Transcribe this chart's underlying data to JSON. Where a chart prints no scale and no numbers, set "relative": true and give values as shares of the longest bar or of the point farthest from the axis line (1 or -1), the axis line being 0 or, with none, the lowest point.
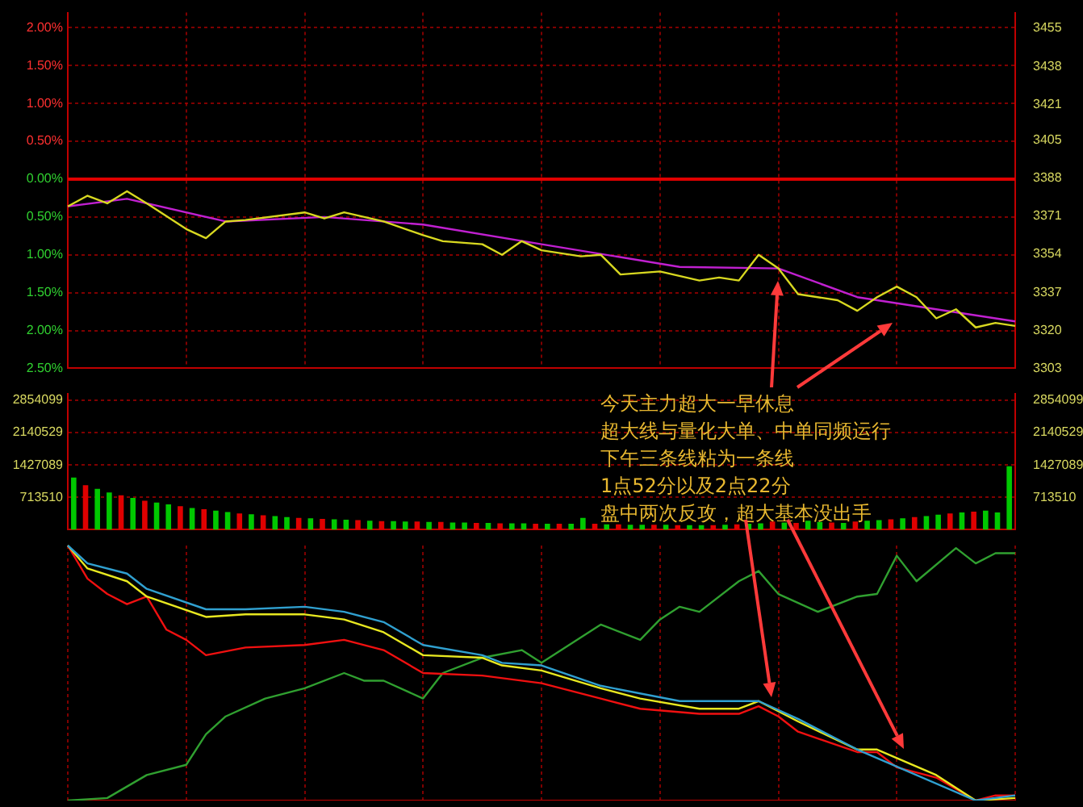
{
  "chart_data": [
    {
      "type": "line",
      "categories": [
        null,
        null,
        null,
        null,
        null,
        null,
        null,
        null,
        null,
        null,
        null,
        null,
        null,
        null,
        null,
        null,
        null,
        null,
        null,
        null,
        null,
        null,
        null,
        null,
        null,
        null,
        null,
        null,
        null,
        null,
        null,
        null,
        null,
        null,
        null,
        null,
        null,
        null,
        null,
        null,
        null,
        null,
        null,
        null,
        null,
        null,
        null,
        null,
        null
      ],
      "ylim": [
        -2.5,
        2.2
      ],
      "yticks": [
        {
          "value": 2,
          "label": "2.00%"
        },
        {
          "value": 1.5,
          "label": "1.50%"
        },
        {
          "value": 1,
          "label": "1.00%"
        },
        {
          "value": 0.5,
          "label": "0.50%"
        },
        {
          "value": 0,
          "label": "0.00%"
        },
        {
          "value": -0.5,
          "label": "0.50%"
        },
        {
          "value": -1,
          "label": "1.00%"
        },
        {
          "value": -1.5,
          "label": "1.50%"
        },
        {
          "value": -2,
          "label": "2.00%"
        },
        {
          "value": -2.5,
          "label": "2.50%"
        }
      ],
      "y2lim": [
        3303,
        3462
      ],
      "y2ticks": [
        3303,
        3320,
        3337,
        3354,
        3371,
        3388,
        3405,
        3421,
        3438,
        3455
      ],
      "grid": true,
      "ref_lines": [
        {
          "axis": "y",
          "value": 0,
          "color": "#e00000"
        }
      ],
      "series": [
        {
          "color": "#d8d820",
          "values": [
            -0.36,
            -0.22,
            -0.32,
            -0.16,
            -0.32,
            null,
            -0.66,
            -0.78,
            -0.56,
            -0.54,
            null,
            null,
            -0.44,
            -0.52,
            -0.44,
            null,
            -0.56,
            null,
            -0.74,
            -0.82,
            null,
            -0.86,
            -1.0,
            -0.82,
            -0.94,
            null,
            -1.02,
            -1.0,
            -1.26,
            null,
            -1.22,
            null,
            -1.34,
            -1.3,
            -1.34,
            -1.0,
            -1.18,
            -1.52,
            null,
            -1.6,
            -1.74,
            -1.56,
            -1.42,
            -1.56,
            -1.84,
            -1.72,
            -1.96,
            -1.9,
            -1.94
          ]
        },
        {
          "color": "#c020d0",
          "values": [
            -0.36,
            null,
            null,
            -0.26,
            null,
            null,
            null,
            null,
            -0.56,
            null,
            null,
            null,
            null,
            -0.5,
            null,
            null,
            null,
            null,
            -0.6,
            null,
            null,
            null,
            null,
            null,
            -0.86,
            null,
            null,
            null,
            null,
            null,
            null,
            -1.16,
            null,
            null,
            null,
            null,
            -1.18,
            null,
            null,
            null,
            -1.56,
            null,
            null,
            null,
            null,
            null,
            null,
            null,
            -1.88
          ]
        }
      ]
    },
    {
      "type": "bar",
      "categories": [
        null,
        null,
        null,
        null,
        null,
        null,
        null,
        null,
        null,
        null,
        null,
        null,
        null,
        null,
        null,
        null,
        null,
        null,
        null,
        null,
        null,
        null,
        null,
        null,
        null,
        null,
        null,
        null,
        null,
        null,
        null,
        null,
        null,
        null,
        null,
        null,
        null,
        null,
        null,
        null,
        null,
        null,
        null,
        null,
        null,
        null,
        null,
        null,
        null,
        null,
        null,
        null,
        null,
        null,
        null,
        null,
        null,
        null,
        null,
        null,
        null,
        null,
        null,
        null,
        null,
        null,
        null,
        null,
        null,
        null,
        null,
        null,
        null,
        null,
        null,
        null,
        null,
        null,
        null,
        null
      ],
      "values": [
        1150000,
        980000,
        900000,
        820000,
        760000,
        700000,
        640000,
        600000,
        560000,
        520000,
        480000,
        450000,
        420000,
        390000,
        360000,
        340000,
        320000,
        300000,
        280000,
        260000,
        250000,
        240000,
        230000,
        220000,
        210000,
        200000,
        190000,
        190000,
        180000,
        180000,
        170000,
        170000,
        160000,
        160000,
        150000,
        150000,
        140000,
        140000,
        140000,
        130000,
        130000,
        130000,
        130000,
        260000,
        130000,
        120000,
        120000,
        110000,
        110000,
        110000,
        110000,
        100000,
        100000,
        100000,
        100000,
        110000,
        120000,
        130000,
        140000,
        180000,
        160000,
        150000,
        200000,
        170000,
        160000,
        150000,
        180000,
        200000,
        210000,
        230000,
        250000,
        280000,
        300000,
        330000,
        360000,
        380000,
        400000,
        420000,
        380000,
        1400000
      ],
      "colors": [
        "#00c800",
        "#e00000",
        "#00c800",
        "#00c800",
        "#e00000",
        "#00c800",
        "#e00000",
        "#00c800",
        "#00c800",
        "#e00000",
        "#00c800",
        "#e00000",
        "#00c800",
        "#00c800",
        "#e00000",
        "#00c800",
        "#e00000",
        "#00c800",
        "#00c800",
        "#e00000",
        "#00c800",
        "#e00000",
        "#00c800",
        "#00c800",
        "#e00000",
        "#00c800",
        "#e00000",
        "#00c800",
        "#00c800",
        "#e00000",
        "#00c800",
        "#e00000",
        "#00c800",
        "#00c800",
        "#e00000",
        "#00c800",
        "#e00000",
        "#00c800",
        "#00c800",
        "#e00000",
        "#00c800",
        "#e00000",
        "#00c800",
        "#00c800",
        "#e00000",
        "#00c800",
        "#e00000",
        "#00c800",
        "#00c800",
        "#e00000",
        "#00c800",
        "#e00000",
        "#00c800",
        "#00c800",
        "#e00000",
        "#00c800",
        "#e00000",
        "#00c800",
        "#00c800",
        "#e00000",
        "#00c800",
        "#e00000",
        "#00c800",
        "#00c800",
        "#e00000",
        "#00c800",
        "#e00000",
        "#00c800",
        "#00c800",
        "#e00000",
        "#00c800",
        "#e00000",
        "#00c800",
        "#00c800",
        "#e00000",
        "#00c800",
        "#e00000",
        "#00c800",
        "#00c800",
        "#00c800"
      ],
      "ylim": [
        0,
        3000000
      ],
      "yticks": [
        713510,
        1427089,
        2140529,
        2854099
      ],
      "y2lim": [
        0,
        3000000
      ],
      "y2ticks": [
        713510,
        1427089,
        2140529,
        2854099
      ],
      "grid": "y",
      "annotations": [
        "今天主力超大一早休息",
        "超大线与量化大单、中单同频运行",
        "下午三条线粘为一条线",
        "1点52分以及2点22分",
        "盘中两次反攻，超大基本没出手"
      ]
    },
    {
      "type": "line",
      "relative": true,
      "categories": [
        null,
        null,
        null,
        null,
        null,
        null,
        null,
        null,
        null,
        null,
        null,
        null,
        null,
        null,
        null,
        null,
        null,
        null,
        null,
        null,
        null,
        null,
        null,
        null,
        null,
        null,
        null,
        null,
        null,
        null,
        null,
        null,
        null,
        null,
        null,
        null,
        null,
        null,
        null,
        null,
        null,
        null,
        null,
        null,
        null,
        null,
        null,
        null,
        null
      ],
      "grid": "x",
      "series": [
        {
          "color": "#30a0d0",
          "values": [
            1,
            0.93,
            null,
            0.89,
            0.83,
            null,
            null,
            0.75,
            null,
            0.75,
            null,
            null,
            0.76,
            null,
            0.74,
            null,
            0.7,
            null,
            0.61,
            null,
            null,
            0.57,
            0.54,
            null,
            0.53,
            null,
            null,
            0.45,
            null,
            null,
            null,
            0.39,
            null,
            null,
            null,
            0.39,
            null,
            0.32,
            null,
            null,
            0.2,
            null,
            null,
            null,
            null,
            null,
            0,
            null,
            0.02
          ]
        },
        {
          "color": "#e8e820",
          "values": [
            1,
            0.91,
            null,
            0.86,
            0.8,
            null,
            null,
            0.72,
            null,
            0.73,
            null,
            null,
            0.73,
            null,
            0.71,
            null,
            0.66,
            null,
            0.57,
            null,
            null,
            0.56,
            0.53,
            null,
            0.51,
            null,
            null,
            0.44,
            null,
            0.4,
            null,
            null,
            0.36,
            null,
            0.36,
            0.39,
            null,
            0.31,
            null,
            null,
            0.2,
            0.2,
            null,
            null,
            0.1,
            null,
            0,
            null,
            0.01
          ]
        },
        {
          "color": "#f01010",
          "values": [
            1,
            0.87,
            0.81,
            0.77,
            0.8,
            0.67,
            0.63,
            0.57,
            null,
            0.6,
            null,
            null,
            0.61,
            null,
            0.63,
            null,
            0.59,
            null,
            0.5,
            null,
            null,
            0.49,
            null,
            null,
            0.46,
            null,
            null,
            0.4,
            null,
            0.36,
            null,
            null,
            0.34,
            null,
            0.34,
            0.37,
            0.33,
            0.27,
            null,
            null,
            0.19,
            0.19,
            0.13,
            null,
            0.09,
            null,
            0,
            0.02,
            0.02
          ]
        },
        {
          "color": "#30a030",
          "values": [
            0,
            null,
            0.01,
            null,
            0.1,
            null,
            0.14,
            0.26,
            0.33,
            null,
            0.4,
            null,
            0.44,
            null,
            0.5,
            0.47,
            0.47,
            null,
            0.4,
            0.5,
            null,
            0.56,
            null,
            0.59,
            0.54,
            null,
            0.64,
            0.69,
            null,
            0.63,
            0.71,
            0.76,
            0.74,
            null,
            0.86,
            0.9,
            0.81,
            null,
            0.74,
            null,
            0.8,
            0.81,
            0.96,
            0.86,
            null,
            0.99,
            0.93,
            0.97,
            0.97
          ]
        }
      ]
    }
  ]
}
